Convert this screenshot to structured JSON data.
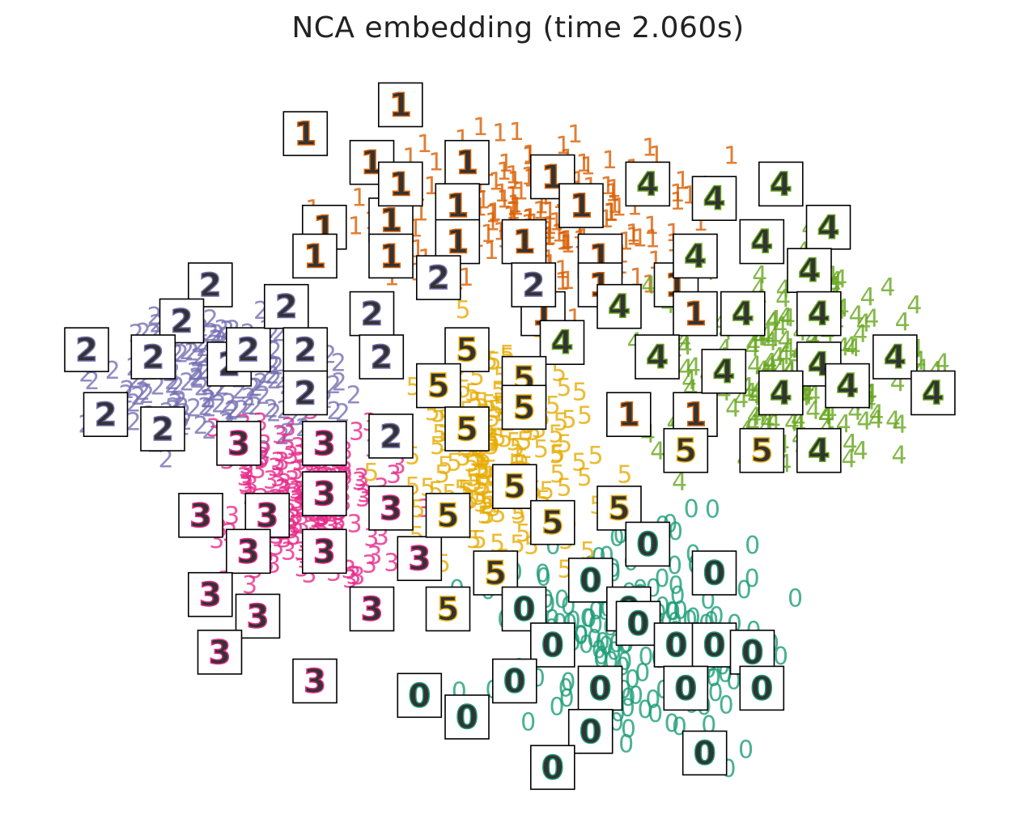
{
  "chart_data": {
    "type": "scatter",
    "title": "NCA embedding (time 2.060s)",
    "xlabel": "",
    "ylabel": "",
    "xlim": [
      0,
      1
    ],
    "ylim": [
      0,
      1
    ],
    "grid": false,
    "axes_visible": false,
    "marker": "digit label",
    "series": [
      {
        "name": "0",
        "color": "#1b9e77",
        "center": [
          0.62,
          0.21
        ],
        "spread": [
          0.09,
          0.09
        ],
        "count": 180
      },
      {
        "name": "1",
        "color": "#d95f02",
        "center": [
          0.5,
          0.79
        ],
        "spread": [
          0.11,
          0.07
        ],
        "count": 180
      },
      {
        "name": "2",
        "color": "#7570b3",
        "center": [
          0.18,
          0.57
        ],
        "spread": [
          0.07,
          0.06
        ],
        "count": 180
      },
      {
        "name": "3",
        "color": "#e7298a",
        "center": [
          0.27,
          0.4
        ],
        "spread": [
          0.06,
          0.08
        ],
        "count": 180
      },
      {
        "name": "4",
        "color": "#66a61e",
        "center": [
          0.79,
          0.59
        ],
        "spread": [
          0.09,
          0.08
        ],
        "count": 180
      },
      {
        "name": "5",
        "color": "#e6ab02",
        "center": [
          0.47,
          0.46
        ],
        "spread": [
          0.06,
          0.09
        ],
        "count": 180
      }
    ],
    "thumbnails": [
      {
        "digit": "1",
        "x": 0.27,
        "y": 0.91
      },
      {
        "digit": "1",
        "x": 0.34,
        "y": 0.87
      },
      {
        "digit": "1",
        "x": 0.29,
        "y": 0.78
      },
      {
        "digit": "1",
        "x": 0.28,
        "y": 0.74
      },
      {
        "digit": "1",
        "x": 0.36,
        "y": 0.79
      },
      {
        "digit": "1",
        "x": 0.36,
        "y": 0.74
      },
      {
        "digit": "1",
        "x": 0.37,
        "y": 0.84
      },
      {
        "digit": "1",
        "x": 0.44,
        "y": 0.87
      },
      {
        "digit": "1",
        "x": 0.43,
        "y": 0.81
      },
      {
        "digit": "1",
        "x": 0.43,
        "y": 0.76
      },
      {
        "digit": "1",
        "x": 0.5,
        "y": 0.76
      },
      {
        "digit": "1",
        "x": 0.53,
        "y": 0.85
      },
      {
        "digit": "1",
        "x": 0.56,
        "y": 0.81
      },
      {
        "digit": "1",
        "x": 0.58,
        "y": 0.74
      },
      {
        "digit": "1",
        "x": 0.58,
        "y": 0.7
      },
      {
        "digit": "1",
        "x": 0.52,
        "y": 0.66
      },
      {
        "digit": "1",
        "x": 0.66,
        "y": 0.7
      },
      {
        "digit": "1",
        "x": 0.68,
        "y": 0.66
      },
      {
        "digit": "1",
        "x": 0.61,
        "y": 0.52
      },
      {
        "digit": "1",
        "x": 0.68,
        "y": 0.52
      },
      {
        "digit": "1",
        "x": 0.37,
        "y": 0.95
      },
      {
        "digit": "2",
        "x": 0.17,
        "y": 0.7
      },
      {
        "digit": "2",
        "x": 0.14,
        "y": 0.65
      },
      {
        "digit": "2",
        "x": 0.04,
        "y": 0.61
      },
      {
        "digit": "2",
        "x": 0.11,
        "y": 0.6
      },
      {
        "digit": "2",
        "x": 0.19,
        "y": 0.59
      },
      {
        "digit": "2",
        "x": 0.21,
        "y": 0.61
      },
      {
        "digit": "2",
        "x": 0.25,
        "y": 0.67
      },
      {
        "digit": "2",
        "x": 0.27,
        "y": 0.61
      },
      {
        "digit": "2",
        "x": 0.27,
        "y": 0.55
      },
      {
        "digit": "2",
        "x": 0.06,
        "y": 0.52
      },
      {
        "digit": "2",
        "x": 0.12,
        "y": 0.5
      },
      {
        "digit": "2",
        "x": 0.34,
        "y": 0.66
      },
      {
        "digit": "2",
        "x": 0.35,
        "y": 0.6
      },
      {
        "digit": "2",
        "x": 0.36,
        "y": 0.49
      },
      {
        "digit": "2",
        "x": 0.41,
        "y": 0.71
      },
      {
        "digit": "2",
        "x": 0.51,
        "y": 0.7
      },
      {
        "digit": "3",
        "x": 0.2,
        "y": 0.48
      },
      {
        "digit": "3",
        "x": 0.29,
        "y": 0.48
      },
      {
        "digit": "3",
        "x": 0.29,
        "y": 0.41
      },
      {
        "digit": "3",
        "x": 0.36,
        "y": 0.39
      },
      {
        "digit": "3",
        "x": 0.16,
        "y": 0.38
      },
      {
        "digit": "3",
        "x": 0.23,
        "y": 0.38
      },
      {
        "digit": "3",
        "x": 0.21,
        "y": 0.33
      },
      {
        "digit": "3",
        "x": 0.29,
        "y": 0.33
      },
      {
        "digit": "3",
        "x": 0.39,
        "y": 0.32
      },
      {
        "digit": "3",
        "x": 0.17,
        "y": 0.27
      },
      {
        "digit": "3",
        "x": 0.22,
        "y": 0.24
      },
      {
        "digit": "3",
        "x": 0.34,
        "y": 0.25
      },
      {
        "digit": "3",
        "x": 0.18,
        "y": 0.19
      },
      {
        "digit": "3",
        "x": 0.28,
        "y": 0.15
      },
      {
        "digit": "4",
        "x": 0.63,
        "y": 0.84
      },
      {
        "digit": "4",
        "x": 0.7,
        "y": 0.82
      },
      {
        "digit": "4",
        "x": 0.77,
        "y": 0.84
      },
      {
        "digit": "4",
        "x": 0.75,
        "y": 0.76
      },
      {
        "digit": "4",
        "x": 0.82,
        "y": 0.78
      },
      {
        "digit": "4",
        "x": 0.68,
        "y": 0.74
      },
      {
        "digit": "4",
        "x": 0.8,
        "y": 0.72
      },
      {
        "digit": "4",
        "x": 0.6,
        "y": 0.67
      },
      {
        "digit": "4",
        "x": 0.73,
        "y": 0.66
      },
      {
        "digit": "4",
        "x": 0.81,
        "y": 0.66
      },
      {
        "digit": "4",
        "x": 0.54,
        "y": 0.62
      },
      {
        "digit": "4",
        "x": 0.64,
        "y": 0.6
      },
      {
        "digit": "4",
        "x": 0.71,
        "y": 0.58
      },
      {
        "digit": "4",
        "x": 0.81,
        "y": 0.59
      },
      {
        "digit": "4",
        "x": 0.89,
        "y": 0.6
      },
      {
        "digit": "4",
        "x": 0.77,
        "y": 0.55
      },
      {
        "digit": "4",
        "x": 0.84,
        "y": 0.56
      },
      {
        "digit": "4",
        "x": 0.93,
        "y": 0.55
      },
      {
        "digit": "4",
        "x": 0.81,
        "y": 0.47
      },
      {
        "digit": "5",
        "x": 0.44,
        "y": 0.61
      },
      {
        "digit": "5",
        "x": 0.41,
        "y": 0.56
      },
      {
        "digit": "5",
        "x": 0.5,
        "y": 0.57
      },
      {
        "digit": "5",
        "x": 0.44,
        "y": 0.5
      },
      {
        "digit": "5",
        "x": 0.5,
        "y": 0.53
      },
      {
        "digit": "5",
        "x": 0.49,
        "y": 0.42
      },
      {
        "digit": "5",
        "x": 0.42,
        "y": 0.38
      },
      {
        "digit": "5",
        "x": 0.53,
        "y": 0.37
      },
      {
        "digit": "5",
        "x": 0.6,
        "y": 0.39
      },
      {
        "digit": "5",
        "x": 0.47,
        "y": 0.3
      },
      {
        "digit": "5",
        "x": 0.42,
        "y": 0.25
      },
      {
        "digit": "5",
        "x": 0.67,
        "y": 0.47
      },
      {
        "digit": "5",
        "x": 0.75,
        "y": 0.47
      },
      {
        "digit": "0",
        "x": 0.63,
        "y": 0.34
      },
      {
        "digit": "0",
        "x": 0.7,
        "y": 0.3
      },
      {
        "digit": "0",
        "x": 0.57,
        "y": 0.29
      },
      {
        "digit": "0",
        "x": 0.5,
        "y": 0.25
      },
      {
        "digit": "0",
        "x": 0.61,
        "y": 0.25
      },
      {
        "digit": "0",
        "x": 0.62,
        "y": 0.23
      },
      {
        "digit": "0",
        "x": 0.53,
        "y": 0.2
      },
      {
        "digit": "0",
        "x": 0.66,
        "y": 0.2
      },
      {
        "digit": "0",
        "x": 0.7,
        "y": 0.2
      },
      {
        "digit": "0",
        "x": 0.74,
        "y": 0.19
      },
      {
        "digit": "0",
        "x": 0.39,
        "y": 0.13
      },
      {
        "digit": "0",
        "x": 0.49,
        "y": 0.15
      },
      {
        "digit": "0",
        "x": 0.58,
        "y": 0.14
      },
      {
        "digit": "0",
        "x": 0.67,
        "y": 0.14
      },
      {
        "digit": "0",
        "x": 0.75,
        "y": 0.14
      },
      {
        "digit": "0",
        "x": 0.44,
        "y": 0.1
      },
      {
        "digit": "0",
        "x": 0.57,
        "y": 0.08
      },
      {
        "digit": "0",
        "x": 0.69,
        "y": 0.05
      },
      {
        "digit": "0",
        "x": 0.53,
        "y": 0.03
      }
    ]
  }
}
